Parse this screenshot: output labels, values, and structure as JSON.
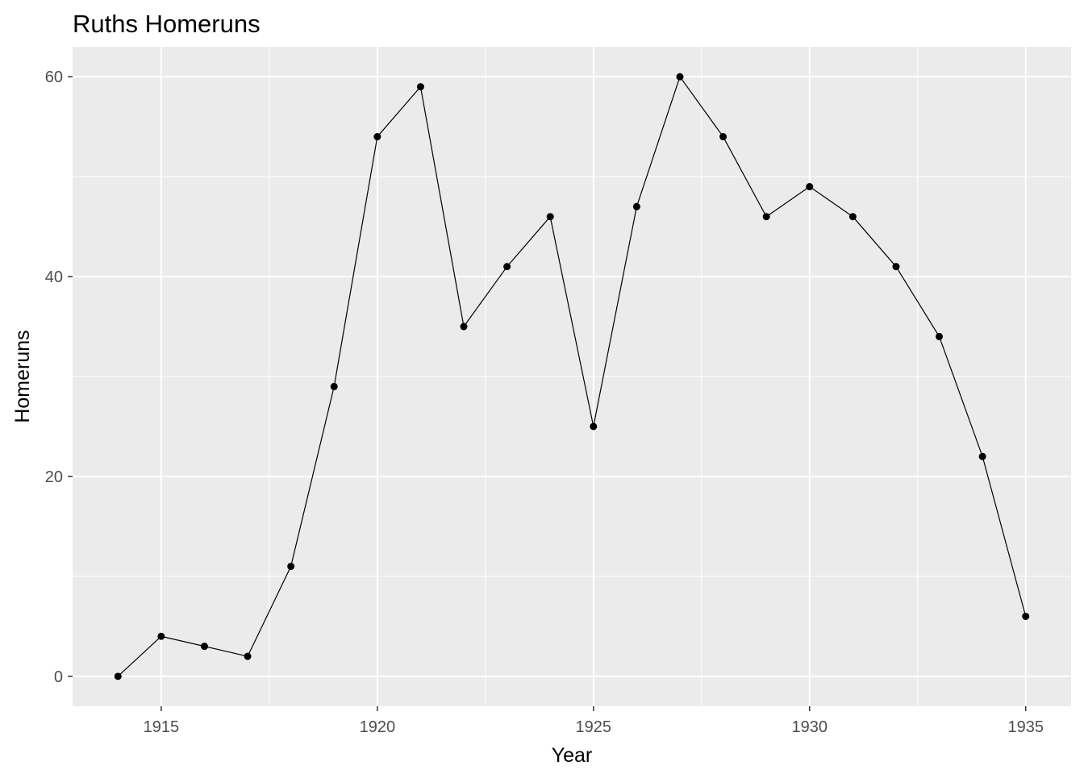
{
  "chart_data": {
    "type": "line",
    "title": "Ruths Homeruns",
    "xlabel": "Year",
    "ylabel": "Homeruns",
    "x": [
      1914,
      1915,
      1916,
      1917,
      1918,
      1919,
      1920,
      1921,
      1922,
      1923,
      1924,
      1925,
      1926,
      1927,
      1928,
      1929,
      1930,
      1931,
      1932,
      1933,
      1934,
      1935
    ],
    "series": [
      {
        "values": [
          0,
          4,
          3,
          2,
          11,
          29,
          54,
          59,
          35,
          41,
          46,
          25,
          47,
          60,
          54,
          46,
          49,
          46,
          41,
          34,
          22,
          6
        ]
      }
    ],
    "xticks": [
      "1915",
      "1920",
      "1925",
      "1930",
      "1935"
    ],
    "yticks": [
      "0",
      "20",
      "40",
      "60"
    ],
    "xlim": [
      1912.95,
      1936.05
    ],
    "ylim": [
      -3,
      63
    ],
    "grid": true,
    "markers": true,
    "colors": {
      "panel": "#ebebeb",
      "grid": "#ffffff",
      "line": "#000000",
      "point": "#000000",
      "tick_text": "#4d4d4d"
    }
  }
}
